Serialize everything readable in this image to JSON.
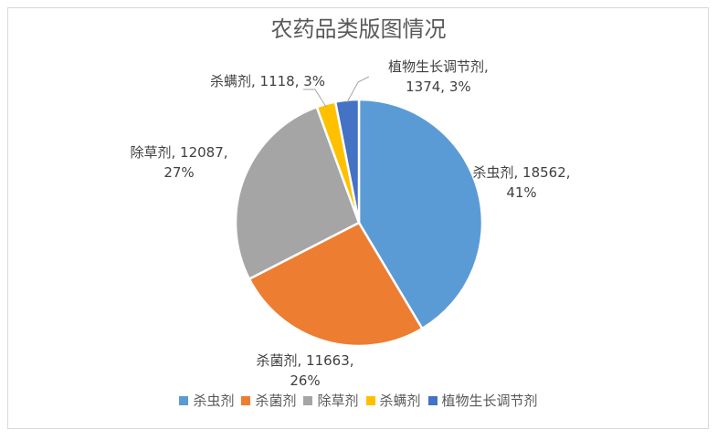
{
  "chart_data": {
    "type": "pie",
    "title": "农药品类版图情况",
    "slices": [
      {
        "name": "杀虫剂",
        "value": 18562,
        "percent": "41%",
        "color": "#5b9bd5"
      },
      {
        "name": "杀菌剂",
        "value": 11663,
        "percent": "26%",
        "color": "#ed7d31"
      },
      {
        "name": "除草剂",
        "value": 12087,
        "percent": "27%",
        "color": "#a5a5a5"
      },
      {
        "name": "杀螨剂",
        "value": 1118,
        "percent": "3%",
        "color": "#ffc000"
      },
      {
        "name": "植物生长调节剂",
        "value": 1374,
        "percent": "3%",
        "color": "#4472c4"
      }
    ],
    "data_labels": [
      "杀虫剂, 18562, 41%",
      "杀菌剂, 11663, 26%",
      "除草剂, 12087, 27%",
      "杀螨剂, 1118, 3%",
      "植物生长调节剂, 1374, 3%"
    ],
    "legend": [
      "杀虫剂",
      "杀菌剂",
      "除草剂",
      "杀螨剂",
      "植物生长调节剂"
    ],
    "legend_position": "bottom"
  }
}
